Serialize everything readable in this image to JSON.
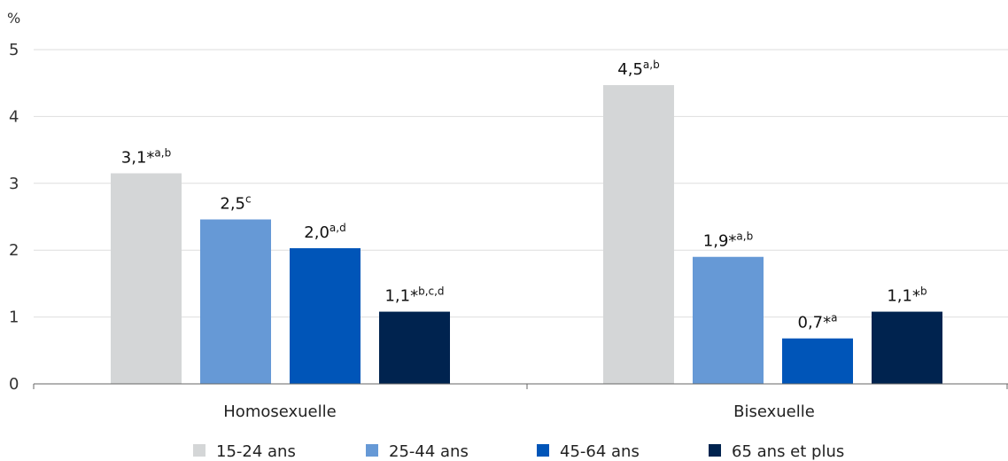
{
  "chart_data": {
    "type": "bar",
    "ylabel": "%",
    "ylim": [
      0,
      5
    ],
    "yticks": [
      "0",
      "1",
      "2",
      "3",
      "4",
      "5"
    ],
    "grid": true,
    "legend_position": "bottom",
    "categories": [
      "Homosexuelle",
      "Bisexuelle"
    ],
    "series": [
      {
        "name": "15-24 ans",
        "color": "#d4d6d7",
        "values": [
          3.15,
          4.47
        ],
        "labels": [
          {
            "main": "3,1*",
            "sup": "a,b"
          },
          {
            "main": "4,5",
            "sup": "a,b"
          }
        ]
      },
      {
        "name": "25-44 ans",
        "color": "#6699d6",
        "values": [
          2.46,
          1.9
        ],
        "labels": [
          {
            "main": "2,5",
            "sup": "c"
          },
          {
            "main": "1,9*",
            "sup": "a,b"
          }
        ]
      },
      {
        "name": "45-64 ans",
        "color": "#0055b8",
        "values": [
          2.03,
          0.68
        ],
        "labels": [
          {
            "main": "2,0",
            "sup": "a,d"
          },
          {
            "main": "0,7*",
            "sup": "a"
          }
        ]
      },
      {
        "name": "65 ans et plus",
        "color": "#00234f",
        "values": [
          1.08,
          1.08
        ],
        "labels": [
          {
            "main": "1,1*",
            "sup": "b,c,d"
          },
          {
            "main": "1,1*",
            "sup": "b"
          }
        ]
      }
    ]
  }
}
